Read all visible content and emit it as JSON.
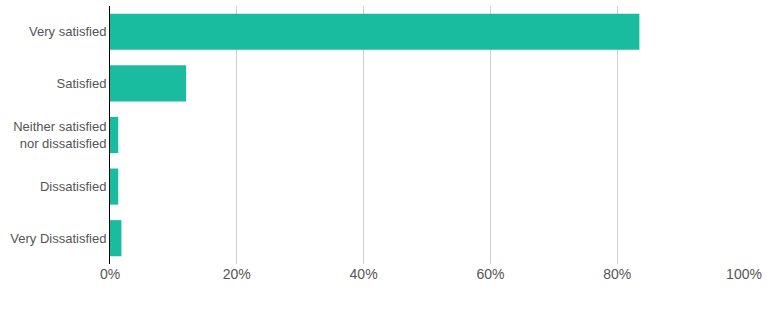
{
  "chart_data": {
    "type": "bar",
    "orientation": "horizontal",
    "categories": [
      "Very satisfied",
      "Satisfied",
      "Neither satisfied nor dissatisfied",
      "Dissatisfied",
      "Very Dissatisfied"
    ],
    "values": [
      83.5,
      12,
      1.3,
      1.3,
      1.8
    ],
    "color": "#1abc9f",
    "xlim": [
      0,
      100
    ],
    "xticks": [
      {
        "value": 0,
        "label": "0%"
      },
      {
        "value": 20,
        "label": "20%"
      },
      {
        "value": 40,
        "label": "40%"
      },
      {
        "value": 60,
        "label": "60%"
      },
      {
        "value": 80,
        "label": "80%"
      },
      {
        "value": 100,
        "label": "100%"
      }
    ],
    "grid": true
  }
}
